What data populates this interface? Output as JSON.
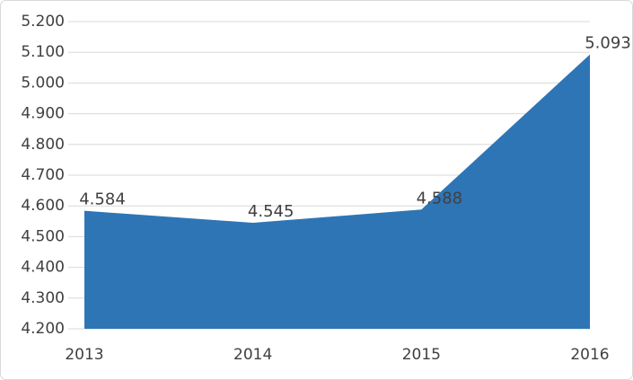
{
  "chart_data": {
    "type": "area",
    "categories": [
      "2013",
      "2014",
      "2015",
      "2016"
    ],
    "values": [
      4.584,
      4.545,
      4.588,
      5.093
    ],
    "color": "#2e75b6",
    "ylim": [
      4.2,
      5.2
    ],
    "yticks": [
      {
        "value": 4.2,
        "label": "4.200"
      },
      {
        "value": 4.3,
        "label": "4.300"
      },
      {
        "value": 4.4,
        "label": "4.400"
      },
      {
        "value": 4.5,
        "label": "4.500"
      },
      {
        "value": 4.6,
        "label": "4.600"
      },
      {
        "value": 4.7,
        "label": "4.700"
      },
      {
        "value": 4.8,
        "label": "4.800"
      },
      {
        "value": 4.9,
        "label": "4.900"
      },
      {
        "value": 5.0,
        "label": "5.000"
      },
      {
        "value": 5.1,
        "label": "5.100"
      },
      {
        "value": 5.2,
        "label": "5.200"
      }
    ],
    "grid": true
  }
}
